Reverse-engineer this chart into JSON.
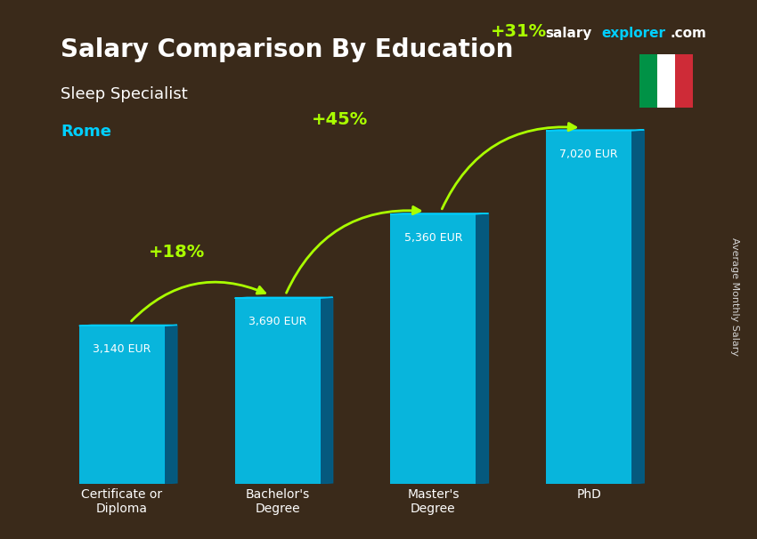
{
  "title_salary": "Salary Comparison By Education",
  "subtitle_job": "Sleep Specialist",
  "subtitle_city": "Rome",
  "ylabel": "Average Monthly Salary",
  "categories": [
    "Certificate or\nDiploma",
    "Bachelor's\nDegree",
    "Master's\nDegree",
    "PhD"
  ],
  "values": [
    3140,
    3690,
    5360,
    7020
  ],
  "value_labels": [
    "3,140 EUR",
    "3,690 EUR",
    "5,360 EUR",
    "7,020 EUR"
  ],
  "pct_labels": [
    "+18%",
    "+45%",
    "+31%"
  ],
  "bar_color_top": "#00cfff",
  "bar_color_bottom": "#0077aa",
  "bar_color_side": "#005f8a",
  "background_color": "#1a1a2e",
  "title_color": "#ffffff",
  "subtitle_job_color": "#ffffff",
  "subtitle_city_color": "#00cfff",
  "value_label_color": "#ffffff",
  "pct_color": "#aaff00",
  "arrow_color": "#aaff00",
  "site_salary_color": "#ffffff",
  "site_explorer_color": "#00cfff",
  "site_dot_com_color": "#ffffff",
  "xlim": [
    -0.6,
    3.8
  ],
  "ylim": [
    0,
    8500
  ],
  "flag_green": "#009246",
  "flag_white": "#ffffff",
  "flag_red": "#ce2b37"
}
